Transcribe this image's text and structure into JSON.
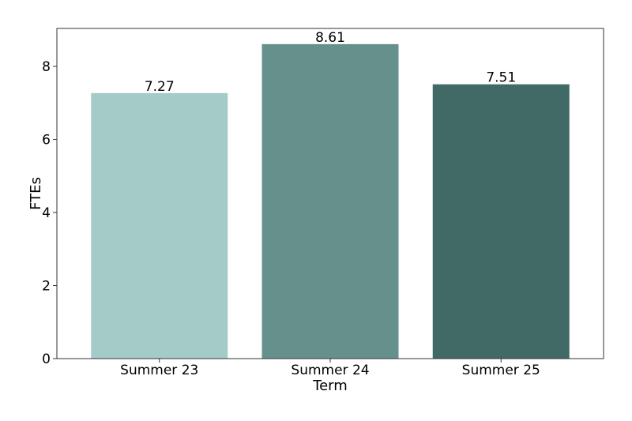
{
  "chart_data": {
    "type": "bar",
    "categories": [
      "Summer 23",
      "Summer 24",
      "Summer 25"
    ],
    "values": [
      7.27,
      8.61,
      7.51
    ],
    "data_labels": [
      "7.27",
      "8.61",
      "7.51"
    ],
    "colors": [
      "#a4cbc8",
      "#66908c",
      "#416966"
    ],
    "xlabel": "Term",
    "ylabel": "FTEs",
    "ylim": [
      0,
      9.04
    ],
    "yticks": [
      0,
      2,
      4,
      6,
      8
    ],
    "grid": false,
    "legend": "none"
  }
}
